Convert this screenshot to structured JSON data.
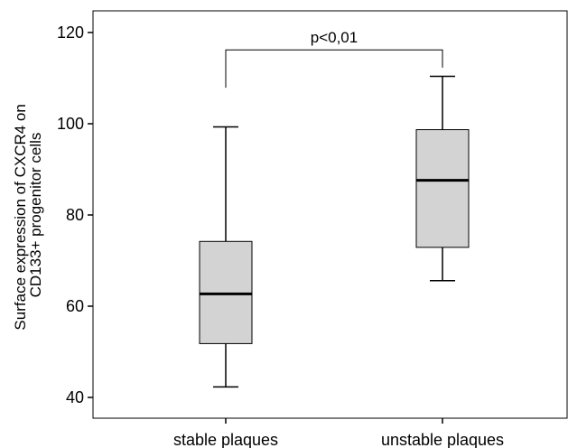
{
  "chart_data": {
    "type": "box",
    "title": "",
    "xlabel": "",
    "ylabel": [
      "Surface expression of CXCR4 on",
      "CD133+ progenitor cells"
    ],
    "ylim": [
      39,
      125
    ],
    "yticks": [
      40,
      60,
      80,
      100,
      120
    ],
    "ytick_labels": [
      "40",
      "60",
      "80",
      "100",
      "120"
    ],
    "grid": false,
    "categories": [
      "stable plaques",
      "unstable plaques"
    ],
    "boxes": [
      {
        "category": "stable plaques",
        "min": 42.3,
        "q1": 51.8,
        "median": 62.7,
        "q3": 74.2,
        "max": 99.3
      },
      {
        "category": "unstable plaques",
        "min": 65.6,
        "q1": 72.9,
        "median": 87.6,
        "q3": 98.7,
        "max": 110.4
      }
    ],
    "annotation": {
      "text": "p<0,01",
      "from": "stable plaques",
      "to": "unstable plaques",
      "bracket_y": 116.2,
      "left_end": 107.9,
      "right_end": 112.3
    },
    "colors": {
      "box_fill": "#d3d3d3",
      "line": "#000000"
    }
  }
}
